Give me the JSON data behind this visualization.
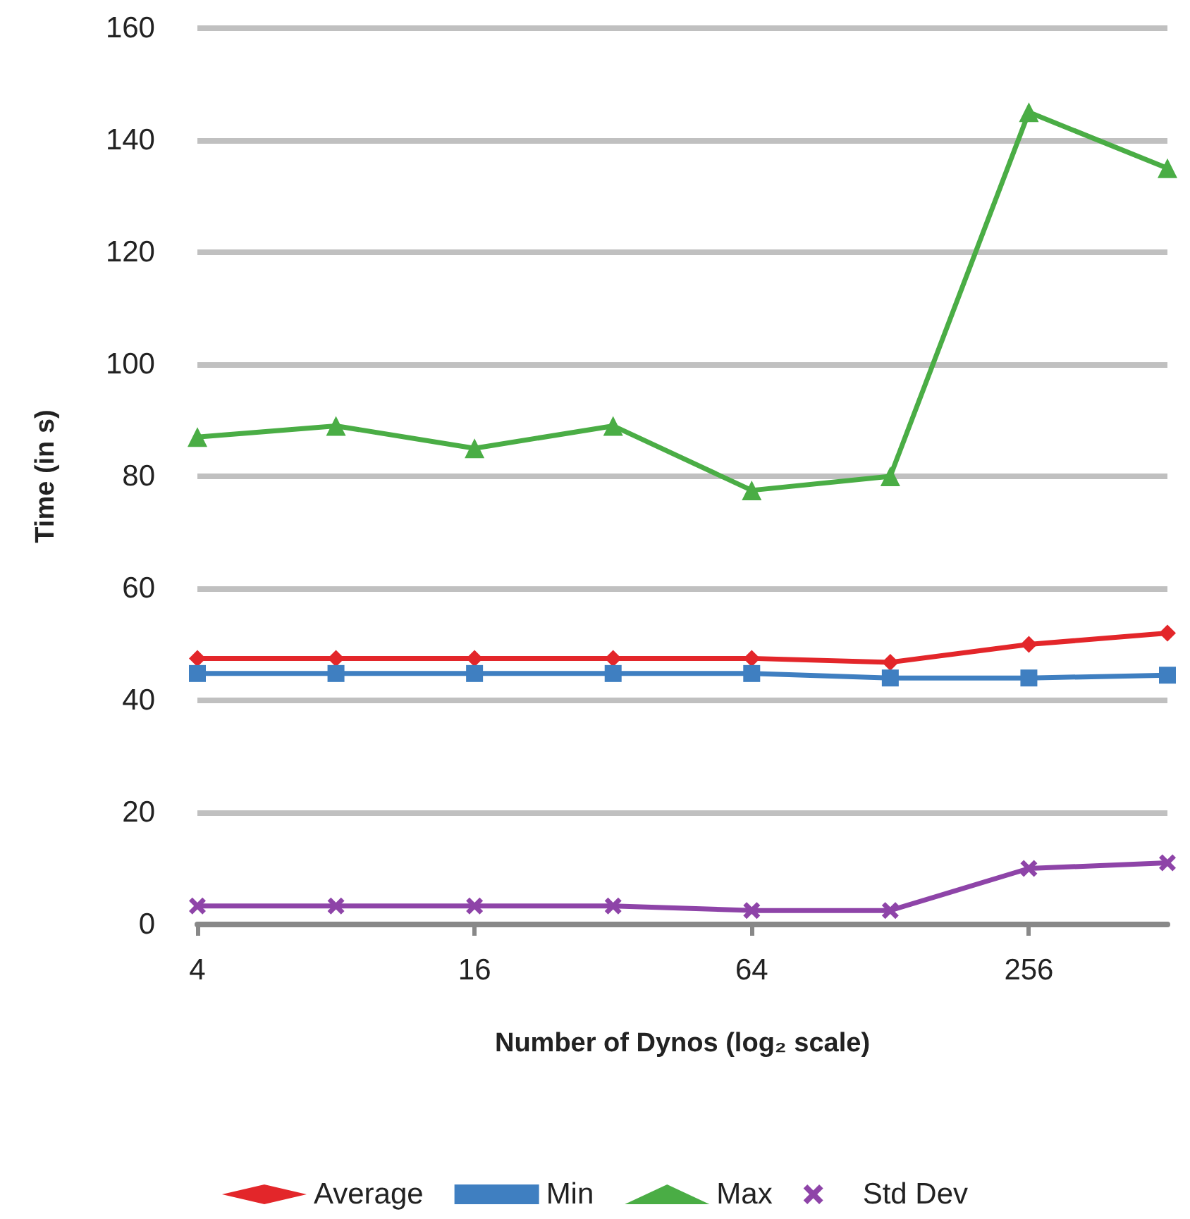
{
  "chart_data": {
    "type": "line",
    "xlabel": "Number of Dynos (log₂ scale)",
    "ylabel": "Time (in s)",
    "categories": [
      "4",
      null,
      "16",
      null,
      "64",
      null,
      "256",
      null
    ],
    "series": [
      {
        "name": "Average",
        "color": "#e3262a",
        "marker": "diamond",
        "values": [
          47.5,
          47.5,
          47.5,
          47.5,
          47.5,
          46.8,
          50,
          52
        ]
      },
      {
        "name": "Min",
        "color": "#3f7fc1",
        "marker": "square",
        "values": [
          44.8,
          44.8,
          44.8,
          44.8,
          44.8,
          44,
          44,
          44.5
        ]
      },
      {
        "name": "Max",
        "color": "#4aad45",
        "marker": "triangle",
        "values": [
          87,
          89,
          85,
          89,
          77.5,
          80,
          145,
          135
        ]
      },
      {
        "name": "Std Dev",
        "color": "#8e44a8",
        "marker": "cross",
        "values": [
          3.3,
          3.3,
          3.3,
          3.3,
          2.5,
          2.5,
          10,
          11
        ]
      }
    ],
    "ylim": [
      0,
      160
    ],
    "yticks": [
      0,
      20,
      40,
      60,
      80,
      100,
      120,
      140,
      160
    ],
    "grid": "y",
    "legend": "bottom",
    "line_style": "solid"
  }
}
